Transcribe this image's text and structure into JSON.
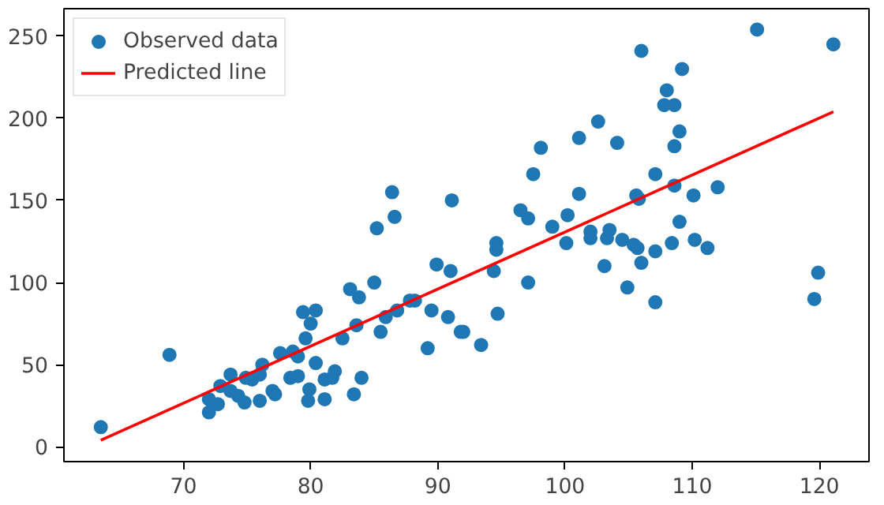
{
  "chart_data": {
    "type": "scatter",
    "xlim": [
      60.6,
      123.9
    ],
    "ylim": [
      -9,
      266.7
    ],
    "xticks": [
      70,
      80,
      90,
      100,
      110,
      120
    ],
    "yticks": [
      0,
      50,
      100,
      150,
      200,
      250
    ],
    "grid": false,
    "legend": "top left",
    "series": [
      {
        "name": "Observed data",
        "marker": "circle",
        "color": "#1f77b4",
        "x": [
          63.5,
          68.9,
          72.0,
          72.0,
          72.7,
          72.9,
          73.7,
          73.7,
          74.3,
          74.8,
          74.9,
          75.4,
          76.0,
          76.2,
          76.0,
          77.0,
          77.2,
          77.6,
          78.6,
          78.4,
          79.0,
          79.0,
          79.4,
          79.6,
          80.0,
          80.4,
          79.9,
          79.8,
          80.4,
          81.1,
          81.1,
          81.9,
          81.7,
          82.5,
          83.1,
          83.4,
          83.8,
          83.6,
          84.0,
          85.0,
          85.5,
          85.9,
          86.8,
          87.8,
          88.2,
          89.2,
          89.5,
          89.9,
          91.0,
          90.8,
          91.8,
          86.4,
          86.6,
          85.2,
          91.1,
          115.1,
          121.1,
          106.0,
          109.2,
          108.0,
          107.8,
          108.6,
          109.0,
          108.6,
          102.6,
          101.1,
          98.1,
          104.1,
          97.5,
          107.1,
          101.1,
          108.6,
          110.1,
          112.0,
          105.6,
          105.8,
          96.5,
          97.1,
          100.2,
          99.0,
          102.0,
          103.5,
          109.0,
          94.6,
          94.6,
          100.1,
          102.0,
          103.3,
          104.5,
          105.4,
          105.7,
          108.4,
          110.2,
          111.2,
          107.1,
          106.0,
          103.1,
          104.9,
          107.1,
          97.1,
          94.4,
          94.7,
          92.0,
          93.4,
          119.9,
          119.6
        ],
        "values": [
          12,
          56,
          21,
          29,
          26,
          37,
          44,
          34,
          31,
          27,
          42,
          41,
          44,
          50,
          28,
          34,
          32,
          57,
          58,
          42,
          43,
          55,
          82,
          66,
          75,
          83,
          35,
          28,
          51,
          41,
          29,
          46,
          42,
          66,
          96,
          32,
          91,
          74,
          42,
          100,
          70,
          79,
          83,
          89,
          89,
          60,
          83,
          111,
          107,
          79,
          70,
          155,
          140,
          133,
          150,
          254,
          245,
          241,
          230,
          217,
          208,
          208,
          192,
          183,
          198,
          188,
          182,
          185,
          166,
          166,
          154,
          159,
          153,
          158,
          153,
          151,
          144,
          139,
          141,
          134,
          131,
          132,
          137,
          124,
          120,
          124,
          127,
          127,
          126,
          123,
          121,
          124,
          126,
          121,
          119,
          112,
          110,
          97,
          88,
          100,
          107,
          81,
          70,
          62,
          106,
          90
        ]
      },
      {
        "name": "Predicted line",
        "type": "line",
        "line_style": "solid",
        "color": "#ff0000",
        "x": [
          63.5,
          121.1
        ],
        "values": [
          4,
          204
        ]
      }
    ]
  }
}
